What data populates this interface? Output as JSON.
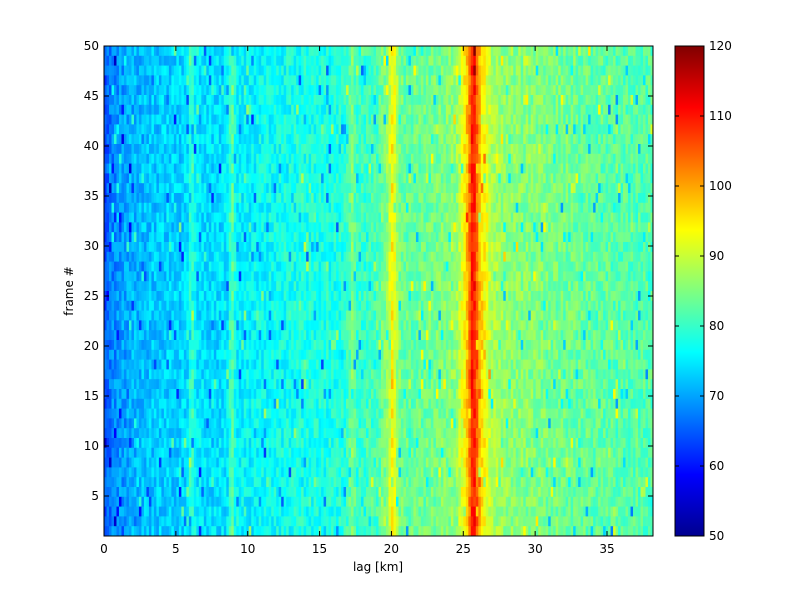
{
  "chart_data": {
    "type": "heatmap",
    "title": "",
    "xlabel": "lag [km]",
    "ylabel": "frame #",
    "xlim": [
      0,
      38.2
    ],
    "ylim": [
      1,
      50
    ],
    "x_ticks": [
      "0",
      "5",
      "10",
      "15",
      "20",
      "25",
      "30",
      "35"
    ],
    "y_ticks": [
      "5",
      "10",
      "15",
      "20",
      "25",
      "30",
      "35",
      "40",
      "45",
      "50"
    ],
    "colorbar": {
      "colormap": "jet",
      "clim": [
        50,
        120
      ],
      "ticks": [
        "50",
        "60",
        "70",
        "80",
        "90",
        "100",
        "110",
        "120"
      ]
    },
    "grid": false,
    "profile_lag_km": [
      0.0,
      0.3,
      0.6,
      1.0,
      2.0,
      3.0,
      4.0,
      5.0,
      5.8,
      6.1,
      6.4,
      7.0,
      8.0,
      8.6,
      8.9,
      9.2,
      10.0,
      12.0,
      14.0,
      16.0,
      16.8,
      17.3,
      17.6,
      18.0,
      19.0,
      19.7,
      20.1,
      20.5,
      21.0,
      23.0,
      24.5,
      25.2,
      25.7,
      26.2,
      27.0,
      28.0,
      30.0,
      32.0,
      34.0,
      36.0,
      38.0
    ],
    "profile_value": [
      64,
      66,
      68,
      69,
      71,
      72,
      73,
      73,
      74,
      81,
      75,
      74,
      74,
      75,
      83,
      76,
      76,
      77,
      78,
      78,
      79,
      85,
      80,
      80,
      81,
      86,
      95,
      85,
      83,
      84,
      86,
      96,
      112,
      97,
      88,
      86,
      85,
      84,
      83,
      82,
      82
    ],
    "notes_visible": "values vary with random speckle around the per-lag profile; frames 1-50 on y-axis"
  }
}
